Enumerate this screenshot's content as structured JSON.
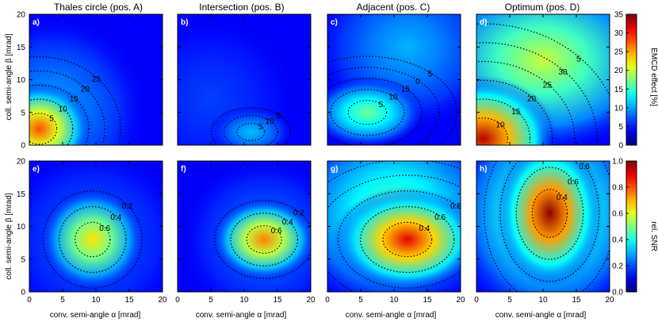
{
  "chart_data": [
    {
      "type": "heatmap",
      "title": "Thales circle (pos. A)",
      "panel_label": "a)",
      "ylabel": "coll. semi-angle β [mrad]",
      "xlim": [
        0,
        20
      ],
      "ylim": [
        0,
        20
      ],
      "x_ticks": [
        "0",
        "5",
        "10",
        "15",
        "20"
      ],
      "y_ticks": [
        "0",
        "5",
        "10",
        "15",
        "20"
      ],
      "quantity": "EMCD effect [%]",
      "contour_levels": [
        "5",
        "10",
        "15",
        "20",
        "25"
      ],
      "peak": {
        "x": 1.5,
        "y": 2.5,
        "value": 28
      }
    },
    {
      "type": "heatmap",
      "title": "Intersection (pos. B)",
      "panel_label": "b)",
      "xlim": [
        0,
        20
      ],
      "ylim": [
        0,
        20
      ],
      "x_ticks": [
        "0",
        "5",
        "10",
        "15",
        "20"
      ],
      "quantity": "EMCD effect [%]",
      "contour_levels": [
        "5",
        "10",
        "5"
      ],
      "peak": {
        "x": 11,
        "y": 2,
        "value": 11
      }
    },
    {
      "type": "heatmap",
      "title": "Adjacent (pos. C)",
      "panel_label": "c)",
      "xlim": [
        0,
        20
      ],
      "ylim": [
        0,
        20
      ],
      "x_ticks": [
        "0",
        "5",
        "10",
        "15",
        "20"
      ],
      "quantity": "EMCD effect [%]",
      "contour_levels": [
        "5",
        "10",
        "15",
        "0",
        "5"
      ],
      "peak": {
        "x": 6,
        "y": 5,
        "value": 17
      }
    },
    {
      "type": "heatmap",
      "title": "Optimum (pos. D)",
      "panel_label": "d)",
      "xlim": [
        0,
        20
      ],
      "ylim": [
        0,
        20
      ],
      "x_ticks": [
        "0",
        "5",
        "10",
        "15",
        "20"
      ],
      "quantity": "EMCD effect [%]",
      "contour_levels": [
        "10",
        "15",
        "20",
        "25",
        "30",
        "5"
      ],
      "peak": {
        "x": 1,
        "y": 1,
        "value": 33
      }
    },
    {
      "type": "heatmap",
      "panel_label": "e)",
      "ylabel": "coll. semi-angle β [mrad]",
      "xlabel": "conv. semi-angle α [mrad]",
      "xlim": [
        0,
        20
      ],
      "ylim": [
        0,
        20
      ],
      "x_ticks": [
        "0",
        "5",
        "10",
        "15",
        "20"
      ],
      "y_ticks": [
        "0",
        "5",
        "10",
        "15",
        "20"
      ],
      "quantity": "rel. SNR",
      "contour_levels": [
        "0.6",
        "0.4",
        "0.2"
      ],
      "peak": {
        "x": 9.5,
        "y": 8,
        "value": 0.65
      }
    },
    {
      "type": "heatmap",
      "panel_label": "f)",
      "xlabel": "conv. semi-angle α [mrad]",
      "xlim": [
        0,
        20
      ],
      "ylim": [
        0,
        20
      ],
      "x_ticks": [
        "0",
        "5",
        "10",
        "15",
        "20"
      ],
      "quantity": "rel. SNR",
      "contour_levels": [
        "0.6",
        "0.4",
        "0.2"
      ],
      "peak": {
        "x": 13,
        "y": 8,
        "value": 0.75
      }
    },
    {
      "type": "heatmap",
      "panel_label": "g)",
      "xlabel": "conv. semi-angle α [mrad]",
      "xlim": [
        0,
        20
      ],
      "ylim": [
        0,
        20
      ],
      "x_ticks": [
        "0",
        "5",
        "10",
        "15",
        "20"
      ],
      "quantity": "rel. SNR",
      "contour_levels": [
        "0.4",
        "0.6",
        "0.8",
        "0.4",
        "0.2"
      ],
      "peak": {
        "x": 12,
        "y": 8,
        "value": 0.9
      }
    },
    {
      "type": "heatmap",
      "panel_label": "h)",
      "xlabel": "conv. semi-angle α [mrad]",
      "xlim": [
        0,
        20
      ],
      "ylim": [
        0,
        20
      ],
      "x_ticks": [
        "0",
        "5",
        "10",
        "15",
        "20"
      ],
      "quantity": "rel. SNR",
      "contour_levels": [
        "0.4",
        "0.6",
        "0.8",
        "0.2"
      ],
      "peak": {
        "x": 11,
        "y": 12,
        "value": 0.98
      }
    }
  ],
  "colorbars": [
    {
      "label": "EMCD effect [%]",
      "min": 0,
      "max": 35,
      "ticks": [
        "0",
        "5",
        "10",
        "15",
        "20",
        "25",
        "30",
        "35"
      ]
    },
    {
      "label": "rel. SNR",
      "min": 0,
      "max": 1,
      "ticks": [
        "0.0",
        "0.2",
        "0.4",
        "0.6",
        "0.8",
        "1.0"
      ]
    }
  ],
  "colormap": "jet",
  "colors": {
    "contour": "#000000",
    "panel_label": "#ffffff",
    "axes": "#000000"
  }
}
